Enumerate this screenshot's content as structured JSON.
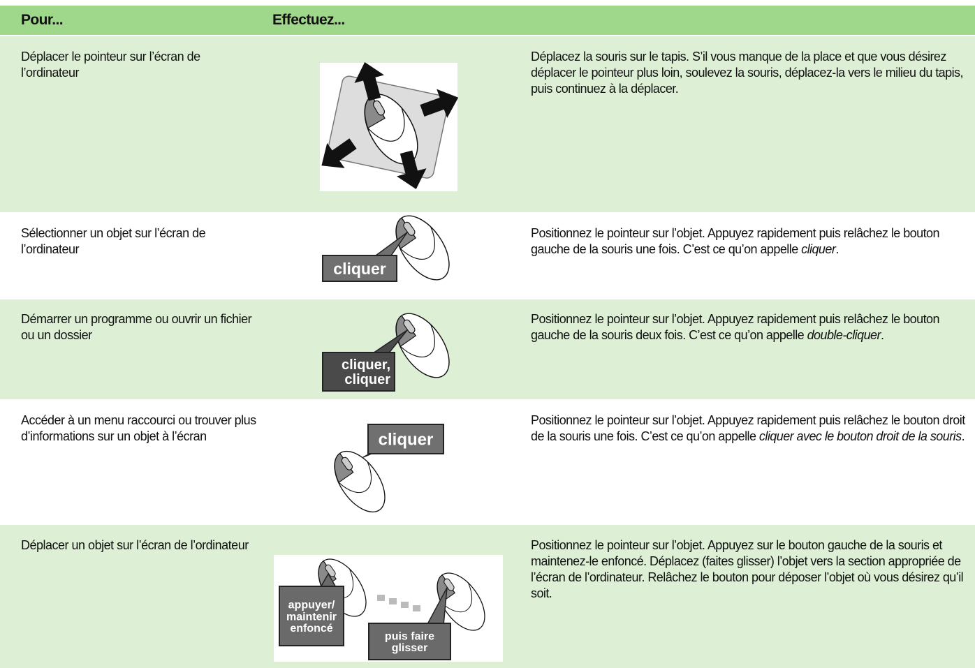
{
  "header": {
    "col1": "Pour...",
    "col2": "Effectuez..."
  },
  "rows": [
    {
      "task": "Déplacer le pointeur sur l’écran de l’ordinateur",
      "image_labels": [],
      "description": [
        {
          "text": "Déplacez la souris sur le tapis. S’il vous manque de la place et que vous désirez déplacer le pointeur plus loin, soulevez la souris, déplacez-la vers le milieu du tapis, puis continuez à la déplacer.",
          "italic": false
        }
      ]
    },
    {
      "task": "Sélectionner un objet sur l’écran de l’ordinateur",
      "image_labels": [
        [
          "cliquer"
        ]
      ],
      "description": [
        {
          "text": "Positionnez le pointeur sur l’objet. Appuyez rapidement puis relâchez le bouton gauche de la souris une fois. C’est ce qu’on appelle ",
          "italic": false
        },
        {
          "text": "cliquer",
          "italic": true
        },
        {
          "text": ".",
          "italic": false
        }
      ]
    },
    {
      "task": "Démarrer un programme ou ouvrir un fichier ou un dossier",
      "image_labels": [
        [
          "cliquer,",
          "cliquer"
        ]
      ],
      "description": [
        {
          "text": "Positionnez le pointeur sur l’objet. Appuyez rapidement puis relâchez le bouton gauche de la souris deux fois. C’est ce qu’on appelle ",
          "italic": false
        },
        {
          "text": "double-cliquer",
          "italic": true
        },
        {
          "text": ".",
          "italic": false
        }
      ]
    },
    {
      "task": "Accéder à un menu raccourci ou trouver plus d’informations sur un objet à l’écran",
      "image_labels": [
        [
          "cliquer"
        ]
      ],
      "description": [
        {
          "text": "Positionnez le pointeur sur l’objet. Appuyez rapidement puis relâchez le bouton droit de la souris une fois. C’est ce qu’on appelle ",
          "italic": false
        },
        {
          "text": "cliquer avec le bouton droit de la souris",
          "italic": true
        },
        {
          "text": ".",
          "italic": false
        }
      ]
    },
    {
      "task": "Déplacer un objet sur l’écran de l’ordinateur",
      "image_labels": [
        [
          "appuyer/",
          "maintenir",
          "enfoncé"
        ],
        [
          "puis faire",
          "glisser"
        ]
      ],
      "description": [
        {
          "text": "Positionnez le pointeur sur l’objet. Appuyez sur le bouton gauche de la souris et maintenez-le enfoncé. Déplacez (faites glisser) l’objet vers la section appropriée de l’écran de l’ordinateur. Relâchez le bouton pour déposer l’objet où vous désirez qu’il soit.",
          "italic": false
        }
      ]
    }
  ]
}
